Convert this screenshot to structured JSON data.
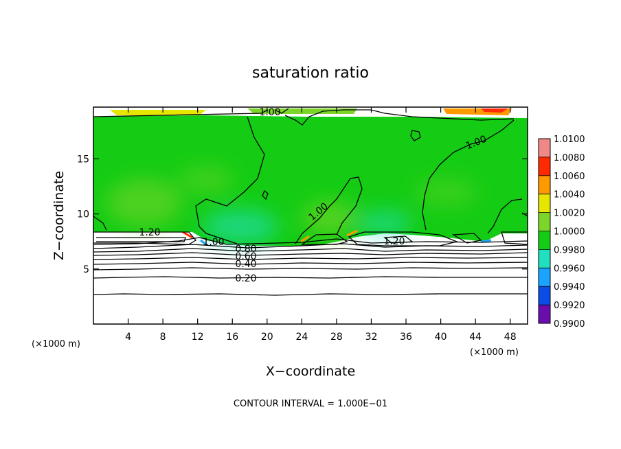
{
  "chart_data": {
    "type": "heatmap",
    "title": "saturation ratio",
    "xlabel": "X−coordinate",
    "ylabel": "Z−coordinate",
    "x_unit": "(×1000 m)",
    "y_unit": "(×1000 m)",
    "xlim": [
      0,
      50
    ],
    "ylim": [
      0,
      19.7
    ],
    "xticks": [
      4,
      8,
      12,
      16,
      20,
      24,
      28,
      32,
      36,
      40,
      44,
      48
    ],
    "yticks": [
      5,
      10,
      15
    ],
    "footer": "CONTOUR INTERVAL = 1.000E−01",
    "colorbar": {
      "levels": [
        "0.9900",
        "0.9920",
        "0.9940",
        "0.9960",
        "0.9980",
        "1.0000",
        "1.0020",
        "1.0040",
        "1.0060",
        "1.0080",
        "1.0100"
      ],
      "colors": [
        "#6a0dad",
        "#1a1acc",
        "#0a4ce6",
        "#1aa3ff",
        "#20e0c0",
        "#14cc14",
        "#7cd62a",
        "#e6e600",
        "#ff9900",
        "#ff2a00",
        "#f08888"
      ]
    },
    "contour_labels": [
      {
        "text": "1.00",
        "x": 19.5,
        "z": 19.0
      },
      {
        "text": "1.00",
        "x": 44.5,
        "z": 17.1
      },
      {
        "text": "1.00",
        "x": 25.5,
        "z": 10.2
      },
      {
        "text": "1.20",
        "x": 6.5,
        "z": 8.4
      },
      {
        "text": "1.20",
        "x": 34.5,
        "z": 7.6
      },
      {
        "text": "1.00",
        "x": 13.5,
        "z": 7.6
      },
      {
        "text": "0.80",
        "x": 17.5,
        "z": 7.0
      },
      {
        "text": "0.60",
        "x": 17.5,
        "z": 6.2
      },
      {
        "text": "0.40",
        "x": 17.5,
        "z": 5.4
      },
      {
        "text": "0.20",
        "x": 17.5,
        "z": 4.1
      }
    ]
  }
}
